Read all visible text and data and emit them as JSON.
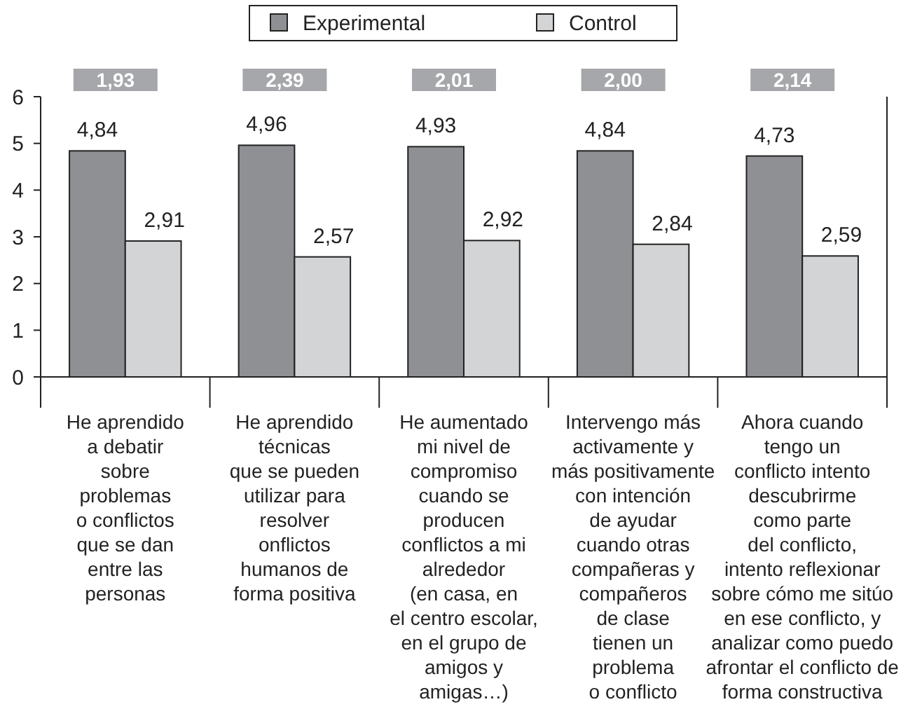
{
  "chart_data": {
    "type": "bar",
    "categories": [
      "He aprendido\na debatir\nsobre\nproblemas\no conflictos\nque se dan\nentre las\npersonas",
      "He aprendido\ntécnicas\nque se pueden\nutilizar para\nresolver\nonflictos\nhumanos de\nforma positiva",
      "He aumentado\nmi nivel de\ncompromiso\ncuando se\nproducen\nconflictos a mi\nalrededor\n(en casa, en\nel centro escolar,\nen el grupo de\namigos y\namigas…)",
      "Intervengo más\nactivamente y\nmás positivamente\ncon intención\nde ayudar\ncuando otras\ncompañeras y\ncompañeros\nde clase\ntienen un\nproblema\no conflicto",
      "Ahora cuando\ntengo un\nconflicto intento\ndescubrirme\ncomo parte\ndel conflicto,\nintento reflexionar\nsobre cómo me sitúo\nen ese conflicto, y\nanalizar como puedo\nafrontar el conflicto de\nforma constructiva"
    ],
    "series": [
      {
        "name": "Experimental",
        "color": "#8f9094",
        "values": [
          4.84,
          4.96,
          4.93,
          4.84,
          4.73
        ],
        "value_labels": [
          "4,84",
          "4,96",
          "4,93",
          "4,84",
          "4,73"
        ]
      },
      {
        "name": "Control",
        "color": "#d3d4d6",
        "values": [
          2.91,
          2.57,
          2.92,
          2.84,
          2.59
        ],
        "value_labels": [
          "2,91",
          "2,57",
          "2,92",
          "2,84",
          "2,59"
        ]
      }
    ],
    "annotations": [
      "1,93",
      "2,39",
      "2,01",
      "2,00",
      "2,14"
    ],
    "ylim": [
      0,
      6
    ],
    "yticks": [
      0,
      1,
      2,
      3,
      4,
      5,
      6
    ],
    "grid": false,
    "legend": "top"
  }
}
